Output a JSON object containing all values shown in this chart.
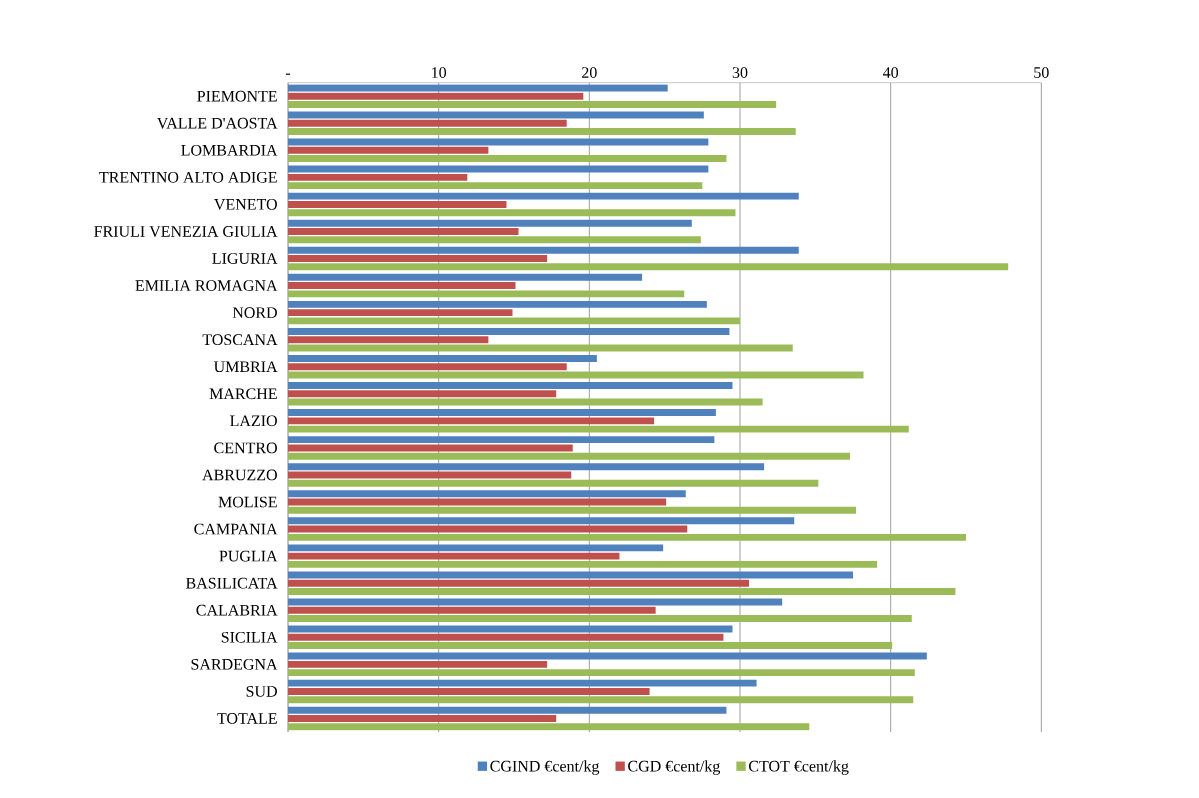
{
  "chart_data": {
    "type": "bar",
    "orientation": "horizontal",
    "categories": [
      "PIEMONTE",
      "VALLE D'AOSTA",
      "LOMBARDIA",
      "TRENTINO ALTO ADIGE",
      "VENETO",
      "FRIULI VENEZIA GIULIA",
      "LIGURIA",
      "EMILIA ROMAGNA",
      "NORD",
      "TOSCANA",
      "UMBRIA",
      "MARCHE",
      "LAZIO",
      "CENTRO",
      "ABRUZZO",
      "MOLISE",
      "CAMPANIA",
      "PUGLIA",
      "BASILICATA",
      "CALABRIA",
      "SICILIA",
      "SARDEGNA",
      "SUD",
      "TOTALE"
    ],
    "series": [
      {
        "name": "CGIND €cent/kg",
        "color": "#4f81bd",
        "values": [
          25.2,
          27.6,
          27.9,
          27.9,
          33.9,
          26.8,
          33.9,
          23.5,
          27.8,
          29.3,
          20.5,
          29.5,
          28.4,
          28.3,
          31.6,
          26.4,
          33.6,
          24.9,
          37.5,
          32.8,
          29.5,
          42.4,
          31.1,
          29.1
        ]
      },
      {
        "name": "CGD €cent/kg",
        "color": "#c0504d",
        "values": [
          19.6,
          18.5,
          13.3,
          11.9,
          14.5,
          15.3,
          17.2,
          15.1,
          14.9,
          13.3,
          18.5,
          17.8,
          24.3,
          18.9,
          18.8,
          25.1,
          26.5,
          22.0,
          30.6,
          24.4,
          28.9,
          17.2,
          24.0,
          17.8
        ]
      },
      {
        "name": "CTOT €cent/kg",
        "color": "#9bbb59",
        "values": [
          32.4,
          33.7,
          29.1,
          27.5,
          29.7,
          27.4,
          47.8,
          26.3,
          30.0,
          33.5,
          38.2,
          31.5,
          41.2,
          37.3,
          35.2,
          37.7,
          45.0,
          39.1,
          44.3,
          41.4,
          40.1,
          41.6,
          41.5,
          34.6
        ]
      }
    ],
    "xlim": [
      0,
      50
    ],
    "xticks": [
      {
        "value": 0,
        "label": "-"
      },
      10,
      20,
      30,
      40,
      50
    ],
    "grid": "x",
    "legend": "bottom"
  }
}
